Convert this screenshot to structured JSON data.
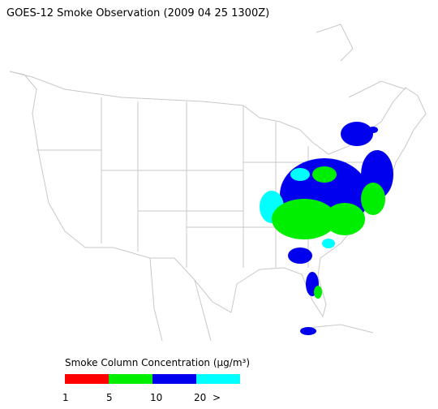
{
  "title": "GOES-12 Smoke Observation (2009 04 25  1300Z)",
  "legend": {
    "title": "Smoke Column Concentration (μg/m³)",
    "colors": [
      "#ff0000",
      "#00ee00",
      "#0000ee",
      "#00ffff"
    ],
    "labels": [
      "1",
      "5",
      "10",
      "20",
      ">"
    ]
  }
}
